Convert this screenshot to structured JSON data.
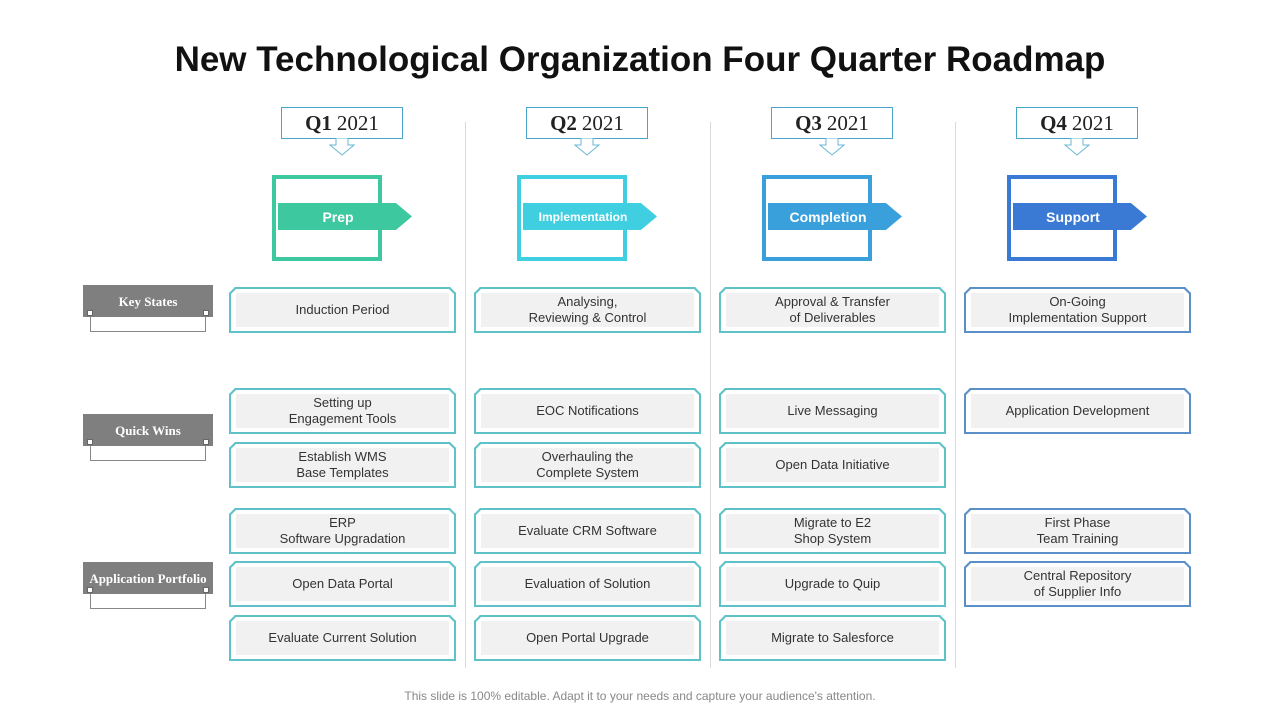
{
  "title": "New Technological Organization Four Quarter Roadmap",
  "footer": "This slide is 100% editable. Adapt it to your needs and capture your audience's attention.",
  "row_labels": {
    "key_states": "Key States",
    "quick_wins": "Quick Wins",
    "application_portfolio": "Application Portfolio"
  },
  "quarters": [
    {
      "q": "Q1",
      "year": "2021",
      "phase": "Prep",
      "color": "#3ec8a0",
      "key_states": [
        "Induction Period"
      ],
      "quick_wins": [
        "Setting up\nEngagement Tools",
        "Establish WMS\nBase Templates"
      ],
      "application_portfolio": [
        "ERP\nSoftware Upgradation",
        "Open Data Portal",
        "Evaluate Current Solution"
      ]
    },
    {
      "q": "Q2",
      "year": "2021",
      "phase": "Implementation",
      "color": "#3fcfe0",
      "key_states": [
        "Analysing,\nReviewing & Control"
      ],
      "quick_wins": [
        "EOC Notifications",
        "Overhauling the\nComplete System"
      ],
      "application_portfolio": [
        "Evaluate CRM Software",
        "Evaluation of Solution",
        "Open Portal Upgrade"
      ]
    },
    {
      "q": "Q3",
      "year": "2021",
      "phase": "Completion",
      "color": "#3aa0dc",
      "key_states": [
        "Approval & Transfer\nof Deliverables"
      ],
      "quick_wins": [
        "Live Messaging",
        "Open Data Initiative"
      ],
      "application_portfolio": [
        "Migrate to E2\nShop System",
        "Upgrade to Quip",
        "Migrate to Salesforce"
      ]
    },
    {
      "q": "Q4",
      "year": "2021",
      "phase": "Support",
      "color": "#3a7ad4",
      "key_states": [
        "On-Going\nImplementation Support"
      ],
      "quick_wins": [
        "Application Development"
      ],
      "application_portfolio": [
        "First Phase\nTeam Training",
        "Central Repository\nof Supplier Info"
      ]
    }
  ]
}
